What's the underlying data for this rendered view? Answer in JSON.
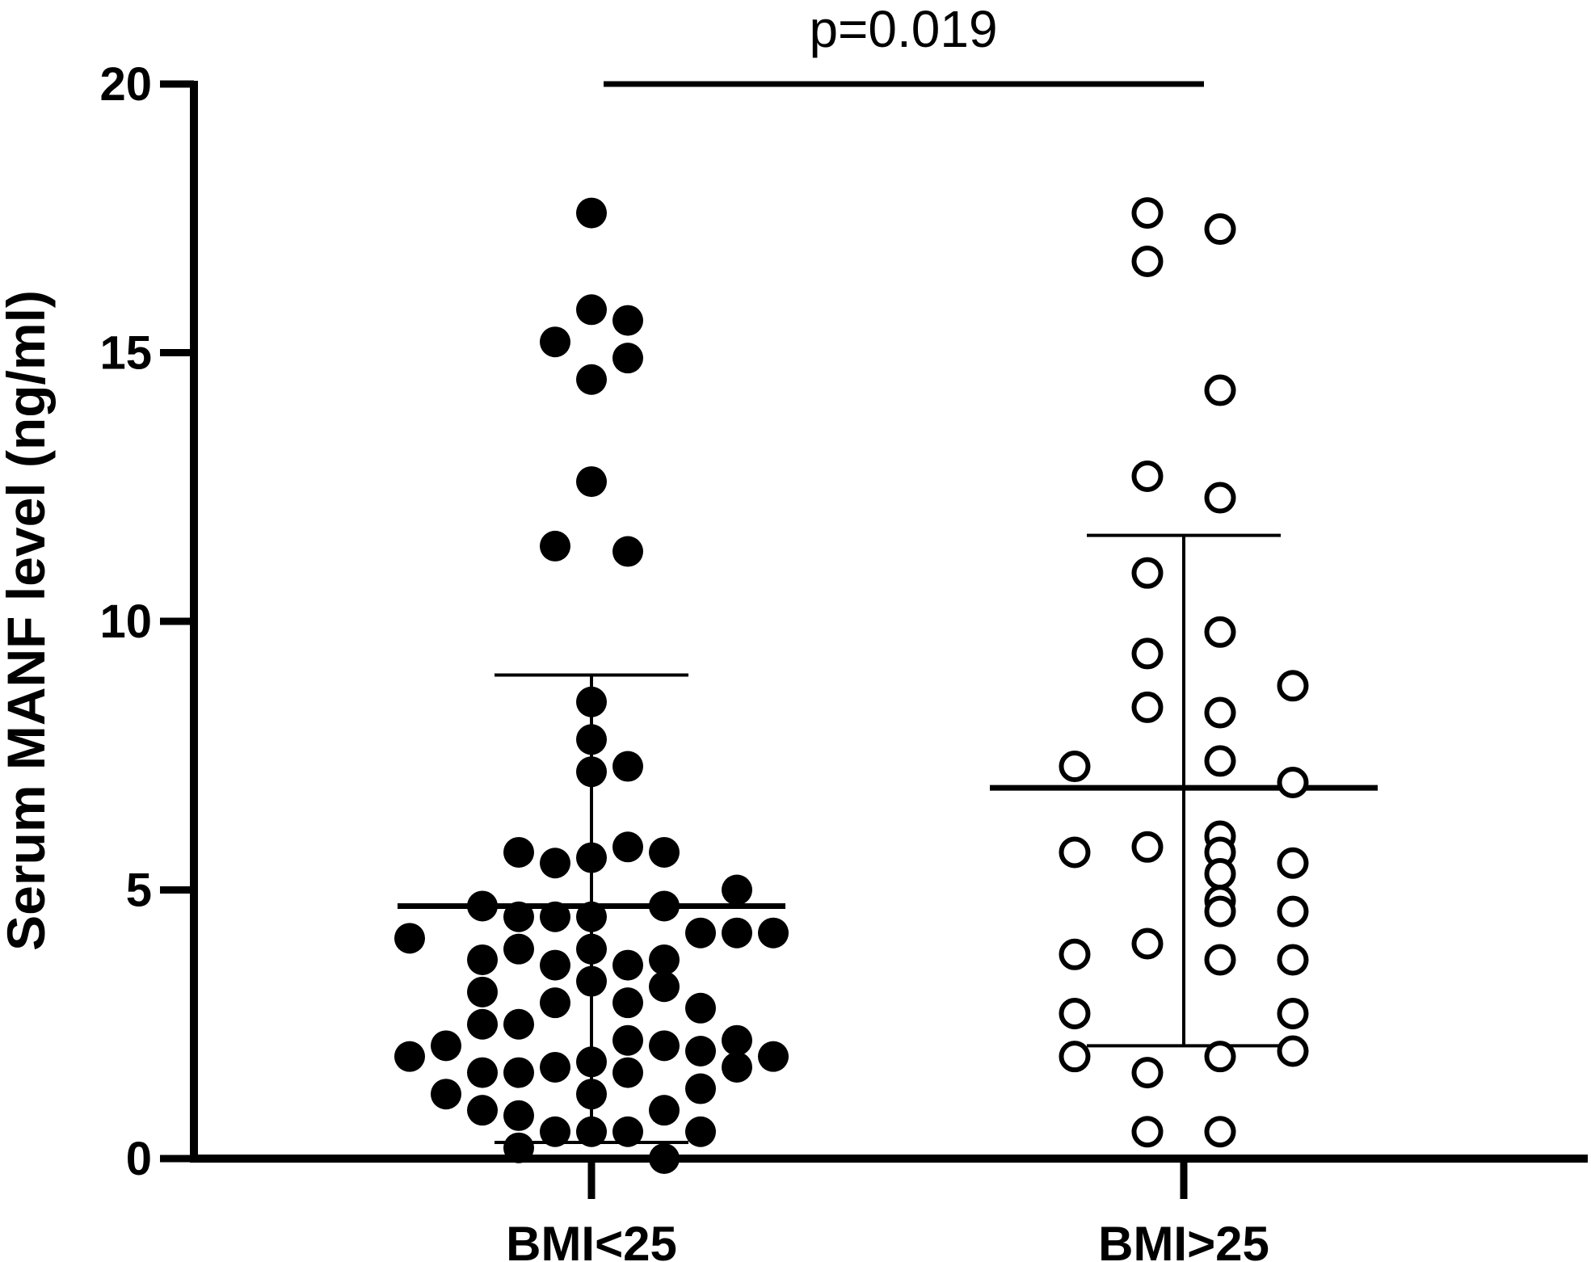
{
  "chart_data": {
    "type": "scatter",
    "ylabel": "Serum MANF level (ng/ml)",
    "ylim": [
      0,
      20
    ],
    "yticks": [
      0,
      5,
      10,
      15,
      20
    ],
    "categories": [
      "BMI<25",
      "BMI>25"
    ],
    "annotation": "p=0.019",
    "colors": {
      "axis": "#000000",
      "fill": "#000000",
      "hollow": "#ffffff"
    },
    "series": [
      {
        "category": "BMI<25",
        "marker": "filled-circle",
        "mean": 4.7,
        "sd_upper": 9.0,
        "sd_lower": 0.3,
        "points": [
          {
            "offset": 0,
            "y": 17.6
          },
          {
            "offset": 0,
            "y": 15.8
          },
          {
            "offset": 1,
            "y": 15.6
          },
          {
            "offset": -1,
            "y": 15.2
          },
          {
            "offset": 1,
            "y": 14.9
          },
          {
            "offset": 0,
            "y": 14.5
          },
          {
            "offset": 0,
            "y": 12.6
          },
          {
            "offset": -1,
            "y": 11.4
          },
          {
            "offset": 1,
            "y": 11.3
          },
          {
            "offset": 0,
            "y": 8.5
          },
          {
            "offset": 0,
            "y": 7.8
          },
          {
            "offset": 1,
            "y": 7.3
          },
          {
            "offset": 0,
            "y": 7.2
          },
          {
            "offset": -2,
            "y": 5.7
          },
          {
            "offset": 1,
            "y": 5.8
          },
          {
            "offset": 2,
            "y": 5.7
          },
          {
            "offset": 0,
            "y": 5.6
          },
          {
            "offset": -1,
            "y": 5.5
          },
          {
            "offset": 4,
            "y": 5.0
          },
          {
            "offset": -3,
            "y": 4.7
          },
          {
            "offset": 2,
            "y": 4.7
          },
          {
            "offset": -2,
            "y": 4.5
          },
          {
            "offset": -1,
            "y": 4.5
          },
          {
            "offset": 0,
            "y": 4.5
          },
          {
            "offset": -5,
            "y": 4.1
          },
          {
            "offset": 3,
            "y": 4.2
          },
          {
            "offset": 4,
            "y": 4.2
          },
          {
            "offset": 5,
            "y": 4.2
          },
          {
            "offset": -2,
            "y": 3.9
          },
          {
            "offset": 0,
            "y": 3.9
          },
          {
            "offset": -3,
            "y": 3.7
          },
          {
            "offset": -1,
            "y": 3.6
          },
          {
            "offset": 1,
            "y": 3.6
          },
          {
            "offset": 2,
            "y": 3.7
          },
          {
            "offset": 0,
            "y": 3.3
          },
          {
            "offset": -3,
            "y": 3.1
          },
          {
            "offset": 2,
            "y": 3.2
          },
          {
            "offset": -1,
            "y": 2.9
          },
          {
            "offset": 1,
            "y": 2.9
          },
          {
            "offset": 3,
            "y": 2.8
          },
          {
            "offset": -3,
            "y": 2.5
          },
          {
            "offset": -2,
            "y": 2.5
          },
          {
            "offset": 1,
            "y": 2.2
          },
          {
            "offset": 4,
            "y": 2.2
          },
          {
            "offset": -4,
            "y": 2.1
          },
          {
            "offset": 2,
            "y": 2.1
          },
          {
            "offset": 3,
            "y": 2.0
          },
          {
            "offset": -5,
            "y": 1.9
          },
          {
            "offset": 5,
            "y": 1.9
          },
          {
            "offset": 0,
            "y": 1.8
          },
          {
            "offset": -3,
            "y": 1.6
          },
          {
            "offset": -2,
            "y": 1.6
          },
          {
            "offset": -1,
            "y": 1.7
          },
          {
            "offset": 1,
            "y": 1.6
          },
          {
            "offset": 4,
            "y": 1.7
          },
          {
            "offset": -4,
            "y": 1.2
          },
          {
            "offset": 0,
            "y": 1.2
          },
          {
            "offset": 3,
            "y": 1.3
          },
          {
            "offset": -3,
            "y": 0.9
          },
          {
            "offset": 2,
            "y": 0.9
          },
          {
            "offset": -2,
            "y": 0.8
          },
          {
            "offset": 3,
            "y": 0.5
          },
          {
            "offset": -1,
            "y": 0.5
          },
          {
            "offset": 0,
            "y": 0.5
          },
          {
            "offset": 1,
            "y": 0.5
          },
          {
            "offset": -2,
            "y": 0.2
          },
          {
            "offset": 2,
            "y": 0.0
          }
        ]
      },
      {
        "category": "BMI>25",
        "marker": "open-circle",
        "mean": 6.9,
        "sd_upper": 11.6,
        "sd_lower": 2.1,
        "points": [
          {
            "offset": -1,
            "y": 17.6
          },
          {
            "offset": 1,
            "y": 17.3
          },
          {
            "offset": -1,
            "y": 16.7
          },
          {
            "offset": 1,
            "y": 14.3
          },
          {
            "offset": -1,
            "y": 12.7
          },
          {
            "offset": 1,
            "y": 12.3
          },
          {
            "offset": -1,
            "y": 10.9
          },
          {
            "offset": 1,
            "y": 9.8
          },
          {
            "offset": -1,
            "y": 9.4
          },
          {
            "offset": 3,
            "y": 8.8
          },
          {
            "offset": -1,
            "y": 8.4
          },
          {
            "offset": 1,
            "y": 8.3
          },
          {
            "offset": -3,
            "y": 7.3
          },
          {
            "offset": 1,
            "y": 7.4
          },
          {
            "offset": 3,
            "y": 7.0
          },
          {
            "offset": 1,
            "y": 6.0
          },
          {
            "offset": -3,
            "y": 5.7
          },
          {
            "offset": -1,
            "y": 5.8
          },
          {
            "offset": 1,
            "y": 5.7
          },
          {
            "offset": 3,
            "y": 5.5
          },
          {
            "offset": 1,
            "y": 5.3
          },
          {
            "offset": 1,
            "y": 4.8
          },
          {
            "offset": 1,
            "y": 4.6
          },
          {
            "offset": 3,
            "y": 4.6
          },
          {
            "offset": -1,
            "y": 4.0
          },
          {
            "offset": -3,
            "y": 3.8
          },
          {
            "offset": 1,
            "y": 3.7
          },
          {
            "offset": 3,
            "y": 3.7
          },
          {
            "offset": -3,
            "y": 2.7
          },
          {
            "offset": 3,
            "y": 2.7
          },
          {
            "offset": 3,
            "y": 2.0
          },
          {
            "offset": 1,
            "y": 1.9
          },
          {
            "offset": -3,
            "y": 1.9
          },
          {
            "offset": -1,
            "y": 1.6
          },
          {
            "offset": -1,
            "y": 0.5
          },
          {
            "offset": 1,
            "y": 0.5
          }
        ]
      }
    ]
  }
}
